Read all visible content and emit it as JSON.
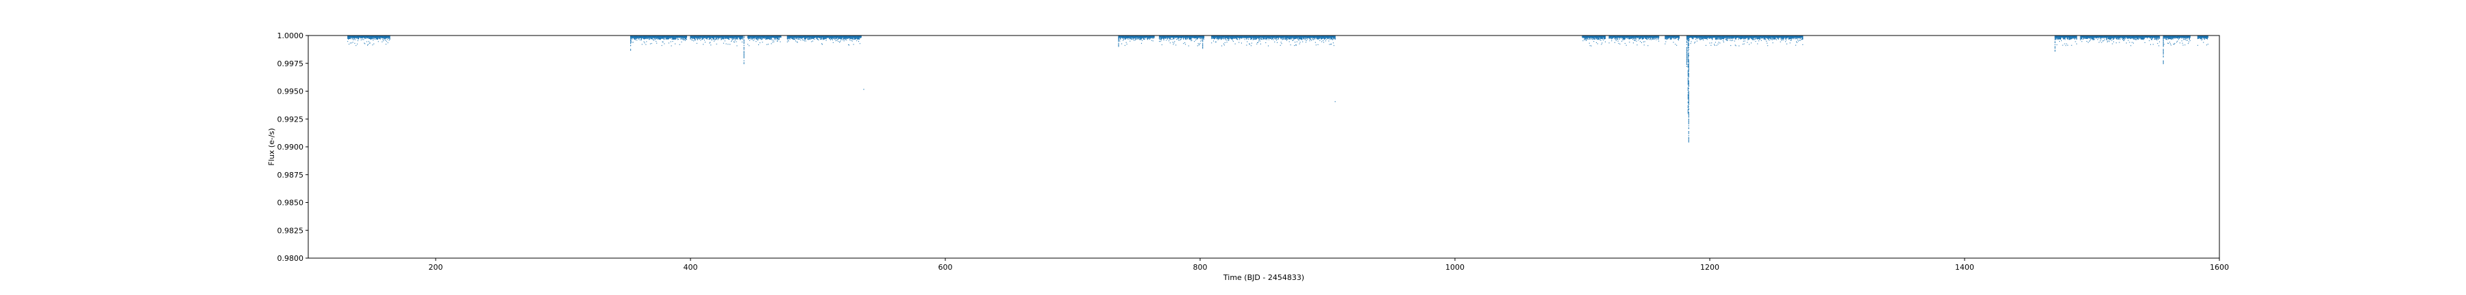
{
  "chart_data": {
    "type": "scatter",
    "title": "",
    "xlabel": "Time (BJD - 2454833)",
    "ylabel": "Flux (e-/s)",
    "xlim": [
      100,
      1600
    ],
    "ylim": [
      0.98,
      1.0
    ],
    "xticks": [
      200,
      400,
      600,
      800,
      1000,
      1200,
      1400,
      1600
    ],
    "yticks": [
      0.98,
      0.9825,
      0.985,
      0.9875,
      0.99,
      0.9925,
      0.995,
      0.9975,
      1.0
    ],
    "ytick_labels": [
      "0.9800",
      "0.9825",
      "0.9850",
      "0.9875",
      "0.9900",
      "0.9925",
      "0.9950",
      "0.9975",
      "1.0000"
    ],
    "grid": false,
    "marker_color": "#1f77b4",
    "observation_windows": [
      [
        131,
        164
      ],
      [
        353,
        397
      ],
      [
        400,
        441
      ],
      [
        445,
        471
      ],
      [
        476,
        534
      ],
      [
        736,
        764
      ],
      [
        768,
        803
      ],
      [
        809,
        906
      ],
      [
        1100,
        1118
      ],
      [
        1121,
        1160
      ],
      [
        1165,
        1176
      ],
      [
        1182,
        1273
      ],
      [
        1471,
        1488
      ],
      [
        1491,
        1553
      ],
      [
        1556,
        1577
      ],
      [
        1583,
        1591
      ]
    ],
    "dips": [
      {
        "x": 353,
        "y": 0.9987
      },
      {
        "x": 442,
        "y": 0.9975
      },
      {
        "x": 736,
        "y": 0.999
      },
      {
        "x": 802,
        "y": 0.9988
      },
      {
        "x": 1182,
        "y": 0.9972
      },
      {
        "x": 1183,
        "y": 0.993
      },
      {
        "x": 1183.5,
        "y": 0.9904
      },
      {
        "x": 1471,
        "y": 0.9985
      },
      {
        "x": 1556,
        "y": 0.9975
      }
    ],
    "outliers": [
      {
        "x": 536,
        "y": 0.9952
      },
      {
        "x": 906,
        "y": 0.9941
      }
    ]
  }
}
